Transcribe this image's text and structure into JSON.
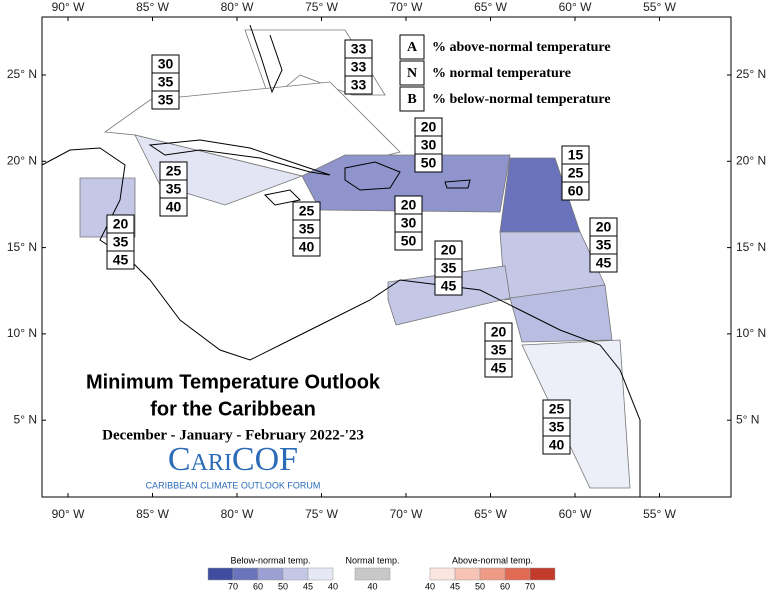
{
  "map": {
    "lon_labels": [
      "90° W",
      "85° W",
      "80° W",
      "75° W",
      "70° W",
      "65° W",
      "60° W",
      "55° W"
    ],
    "lat_labels": [
      "25° N",
      "20° N",
      "15° N",
      "10° N",
      "5° N"
    ],
    "key": [
      {
        "letter": "A",
        "text": "% above-normal temperature"
      },
      {
        "letter": "N",
        "text": "% normal temperature"
      },
      {
        "letter": "B",
        "text": "% below-normal temperature"
      }
    ],
    "title": [
      "Minimum Temperature Outlook",
      "for the Caribbean",
      "December - January - February 2022-'23"
    ],
    "logo": {
      "name": "CariCOF",
      "subtitle": "CARIBBEAN CLIMATE OUTLOOK FORUM"
    },
    "regions": [
      [
        30,
        35,
        35
      ],
      [
        33,
        33,
        33
      ],
      [
        20,
        30,
        50
      ],
      [
        15,
        25,
        60
      ],
      [
        25,
        35,
        40
      ],
      [
        20,
        35,
        45
      ],
      [
        25,
        35,
        40
      ],
      [
        20,
        30,
        50
      ],
      [
        20,
        35,
        45
      ],
      [
        20,
        35,
        45
      ],
      [
        20,
        35,
        45
      ],
      [
        25,
        35,
        40
      ]
    ],
    "colorbar": {
      "below": {
        "title": "Below-normal temp.",
        "labels": [
          70,
          60,
          50,
          45,
          40
        ]
      },
      "normal": {
        "title": "Normal temp.",
        "labels": [
          40
        ]
      },
      "above": {
        "title": "Above-normal temp.",
        "labels": [
          40,
          45,
          50,
          60,
          70
        ]
      }
    }
  }
}
